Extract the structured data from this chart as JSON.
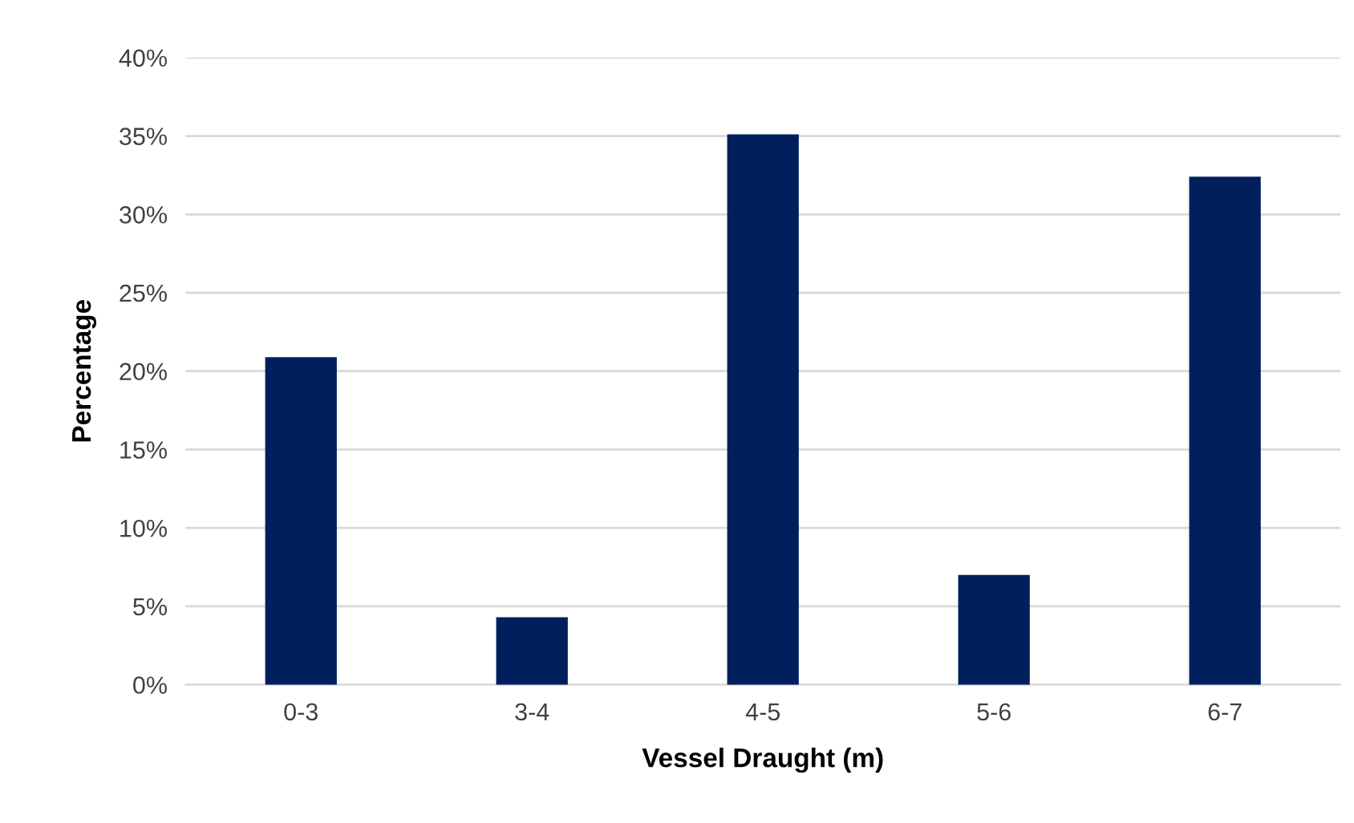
{
  "chart_data": {
    "type": "bar",
    "xlabel": "Vessel Draught (m)",
    "ylabel": "Percentage",
    "categories": [
      "0-3",
      "3-4",
      "4-5",
      "5-6",
      "6-7"
    ],
    "series": [
      {
        "color": "#001f5c",
        "values": [
          20.9,
          4.3,
          35.1,
          7.0,
          32.4
        ]
      }
    ],
    "ylim": [
      0,
      40
    ],
    "yticks": [
      {
        "value": 0,
        "label": "0%"
      },
      {
        "value": 5,
        "label": "5%"
      },
      {
        "value": 10,
        "label": "10%"
      },
      {
        "value": 15,
        "label": "15%"
      },
      {
        "value": 20,
        "label": "20%"
      },
      {
        "value": 25,
        "label": "25%"
      },
      {
        "value": 30,
        "label": "30%"
      },
      {
        "value": 35,
        "label": "35%"
      },
      {
        "value": 40,
        "label": "40%"
      }
    ],
    "grid": "y",
    "legend": false
  }
}
